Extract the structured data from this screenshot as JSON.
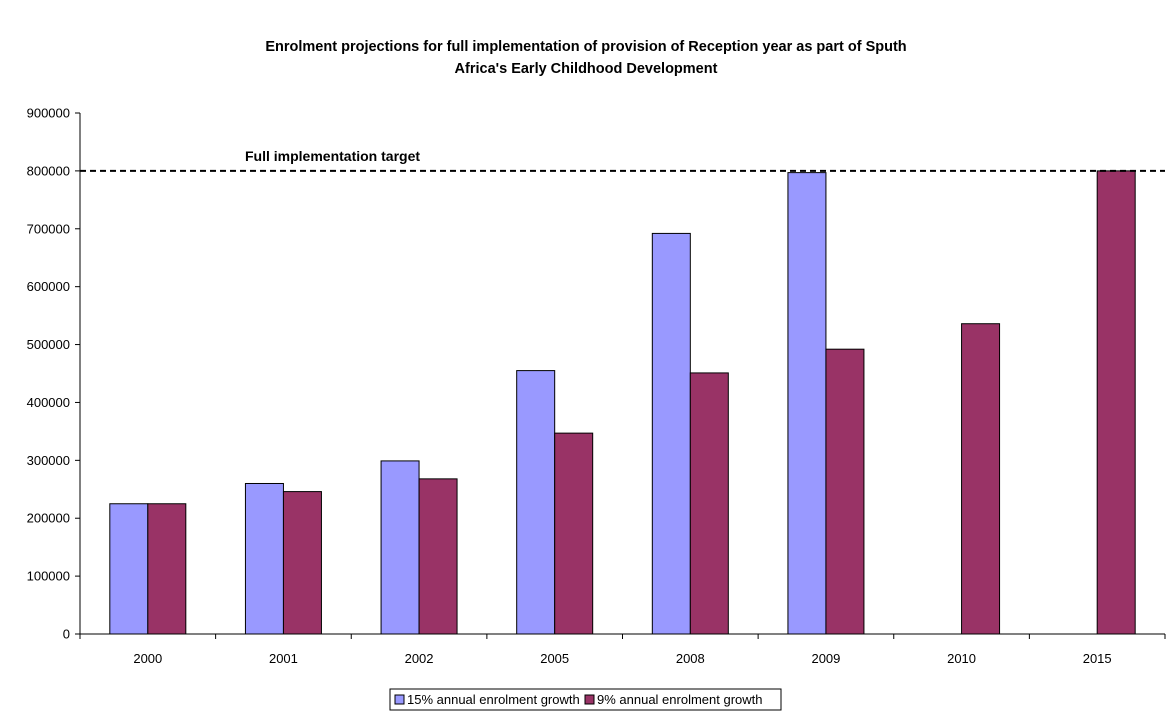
{
  "chart_data": {
    "type": "bar",
    "title_lines": [
      "Enrolment projections for full implementation of provision of Reception year as part of Sputh",
      "Africa's Early Childhood Development"
    ],
    "xlabel": "",
    "ylabel": "",
    "categories": [
      "2000",
      "2001",
      "2002",
      "2005",
      "2008",
      "2009",
      "2010",
      "2015"
    ],
    "ylim": [
      0,
      900000
    ],
    "yticks": [
      0,
      100000,
      200000,
      300000,
      400000,
      500000,
      600000,
      700000,
      800000,
      900000
    ],
    "ytick_labels": [
      "0",
      "100000",
      "200000",
      "300000",
      "400000",
      "500000",
      "600000",
      "700000",
      "800000",
      "900000"
    ],
    "grid": false,
    "legend_position": "bottom",
    "series": [
      {
        "name": "15% annual enrolment growth",
        "color": "#9999ff",
        "values": [
          225000,
          260000,
          299000,
          455000,
          692000,
          797000,
          null,
          null
        ]
      },
      {
        "name": "9% annual enrolment growth",
        "color": "#993366",
        "values": [
          225000,
          246000,
          268000,
          347000,
          451000,
          492000,
          536000,
          800000
        ]
      }
    ],
    "reference_line": {
      "value": 800000,
      "label": "Full implementation target",
      "style": "dashed",
      "color": "#000000"
    }
  }
}
